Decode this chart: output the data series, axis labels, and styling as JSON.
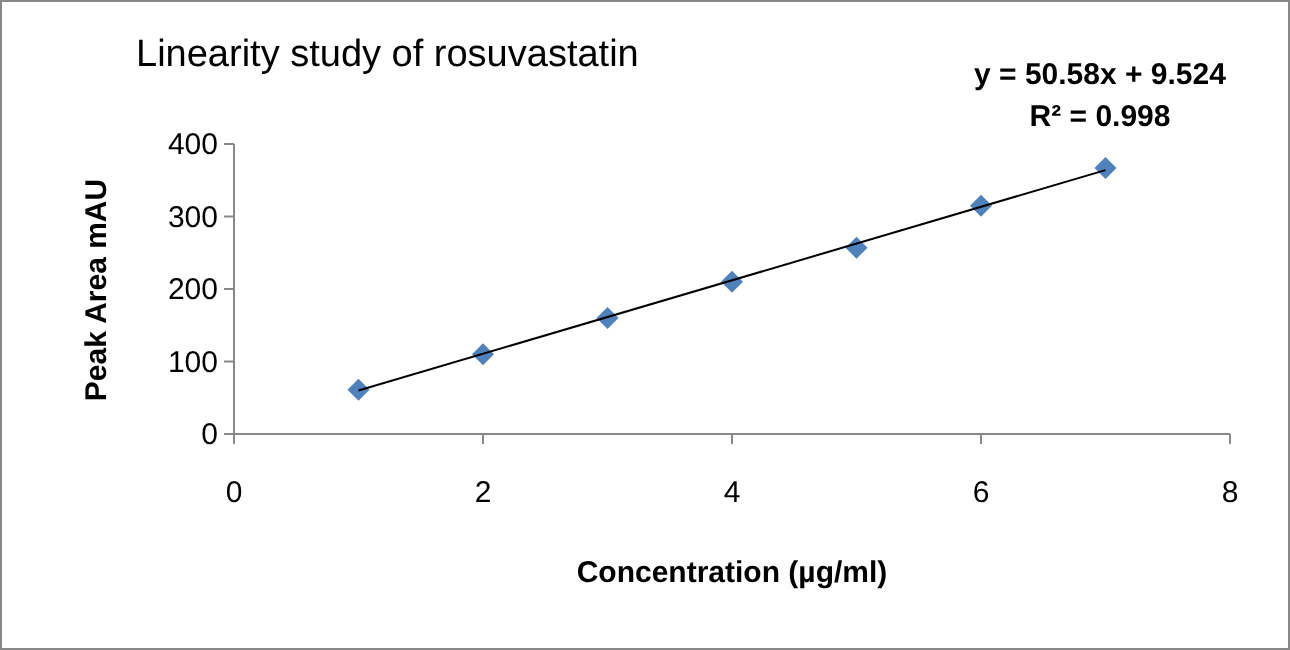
{
  "chart_data": {
    "type": "scatter",
    "title": "Linearity study of rosuvastatin",
    "xlabel": "Concentration (µg/ml)",
    "ylabel": "Peak Area mAU",
    "xlim": [
      0,
      8
    ],
    "xticks": [
      0,
      2,
      4,
      6,
      8
    ],
    "ylim": [
      0,
      400
    ],
    "yticks": [
      0,
      100,
      200,
      300,
      400
    ],
    "grid": false,
    "marker": "diamond",
    "series": [
      {
        "color": "#4f81bd",
        "x": [
          1,
          2,
          3,
          4,
          5,
          6,
          7
        ],
        "values": [
          61,
          110,
          160,
          210,
          257,
          315,
          367
        ]
      },
      {
        "type": "line",
        "color": "#000000",
        "x": [
          1,
          7
        ],
        "values": [
          60,
          364
        ],
        "line_style": "solid",
        "marker": "none"
      }
    ],
    "annotations": [
      "y = 50.58x + 9.524",
      "R² = 0.998"
    ]
  }
}
